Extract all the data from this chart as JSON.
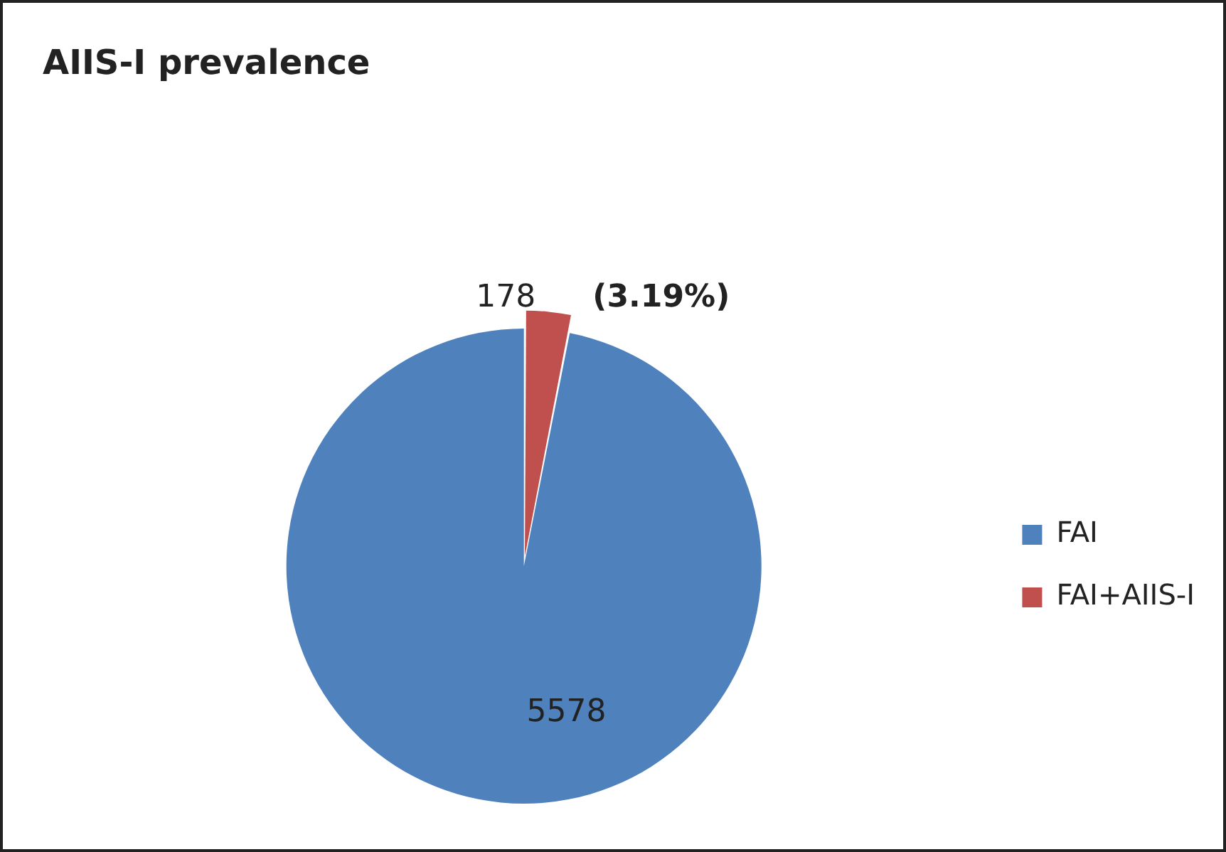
{
  "chart_data": {
    "type": "pie",
    "title": "AIIS-I prevalence",
    "categories": [
      "FAI",
      "FAI+AIIS-I"
    ],
    "values": [
      5578,
      178
    ],
    "colors": [
      "#4f81bd",
      "#c0504d"
    ],
    "data_labels": true,
    "legend": "right",
    "annotations": [
      "(3.19%)"
    ]
  }
}
